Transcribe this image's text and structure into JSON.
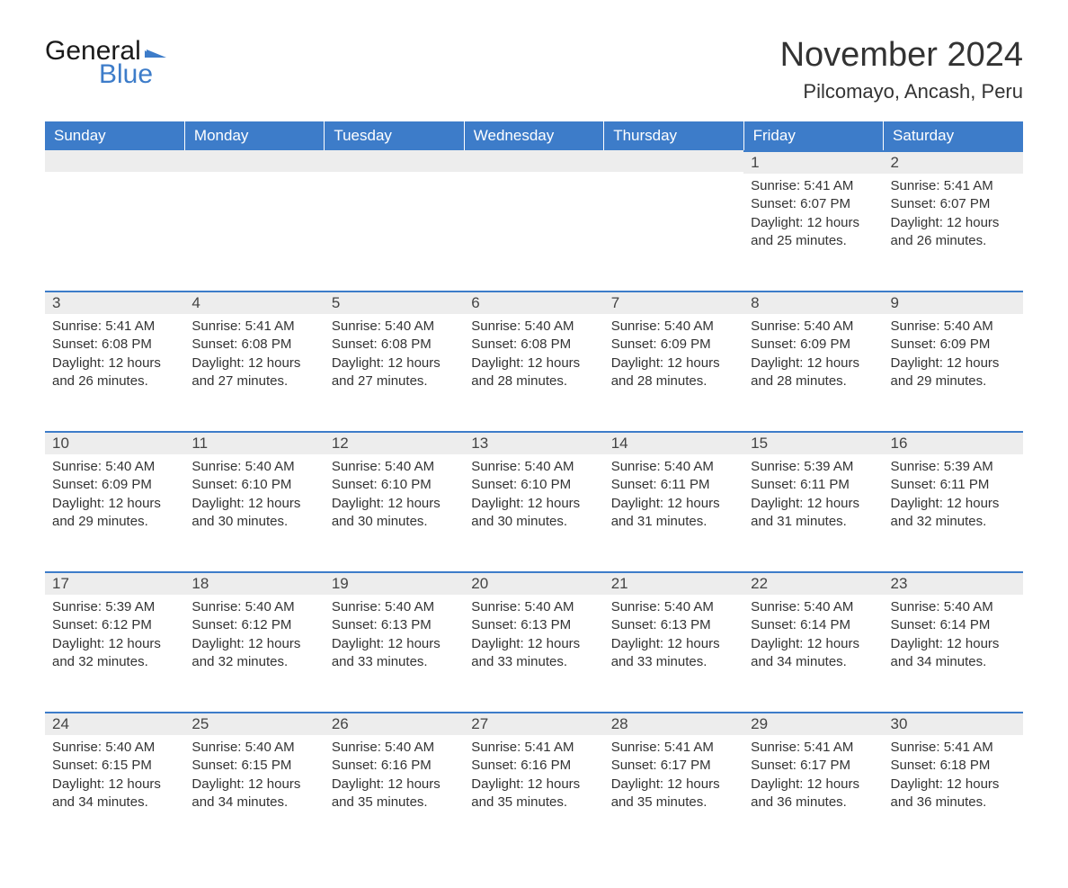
{
  "logo": {
    "text_general": "General",
    "text_blue": "Blue",
    "flag_color": "#3d7cc9"
  },
  "title": "November 2024",
  "location": "Pilcomayo, Ancash, Peru",
  "colors": {
    "header_bg": "#3d7cc9",
    "header_text": "#ffffff",
    "daynum_bg": "#ededed",
    "daynum_border": "#3d7cc9",
    "body_bg": "#ffffff",
    "text": "#333333"
  },
  "weekdays": [
    "Sunday",
    "Monday",
    "Tuesday",
    "Wednesday",
    "Thursday",
    "Friday",
    "Saturday"
  ],
  "calendar": {
    "first_weekday_index": 5,
    "days": [
      {
        "n": 1,
        "sunrise": "5:41 AM",
        "sunset": "6:07 PM",
        "daylight": "12 hours and 25 minutes."
      },
      {
        "n": 2,
        "sunrise": "5:41 AM",
        "sunset": "6:07 PM",
        "daylight": "12 hours and 26 minutes."
      },
      {
        "n": 3,
        "sunrise": "5:41 AM",
        "sunset": "6:08 PM",
        "daylight": "12 hours and 26 minutes."
      },
      {
        "n": 4,
        "sunrise": "5:41 AM",
        "sunset": "6:08 PM",
        "daylight": "12 hours and 27 minutes."
      },
      {
        "n": 5,
        "sunrise": "5:40 AM",
        "sunset": "6:08 PM",
        "daylight": "12 hours and 27 minutes."
      },
      {
        "n": 6,
        "sunrise": "5:40 AM",
        "sunset": "6:08 PM",
        "daylight": "12 hours and 28 minutes."
      },
      {
        "n": 7,
        "sunrise": "5:40 AM",
        "sunset": "6:09 PM",
        "daylight": "12 hours and 28 minutes."
      },
      {
        "n": 8,
        "sunrise": "5:40 AM",
        "sunset": "6:09 PM",
        "daylight": "12 hours and 28 minutes."
      },
      {
        "n": 9,
        "sunrise": "5:40 AM",
        "sunset": "6:09 PM",
        "daylight": "12 hours and 29 minutes."
      },
      {
        "n": 10,
        "sunrise": "5:40 AM",
        "sunset": "6:09 PM",
        "daylight": "12 hours and 29 minutes."
      },
      {
        "n": 11,
        "sunrise": "5:40 AM",
        "sunset": "6:10 PM",
        "daylight": "12 hours and 30 minutes."
      },
      {
        "n": 12,
        "sunrise": "5:40 AM",
        "sunset": "6:10 PM",
        "daylight": "12 hours and 30 minutes."
      },
      {
        "n": 13,
        "sunrise": "5:40 AM",
        "sunset": "6:10 PM",
        "daylight": "12 hours and 30 minutes."
      },
      {
        "n": 14,
        "sunrise": "5:40 AM",
        "sunset": "6:11 PM",
        "daylight": "12 hours and 31 minutes."
      },
      {
        "n": 15,
        "sunrise": "5:39 AM",
        "sunset": "6:11 PM",
        "daylight": "12 hours and 31 minutes."
      },
      {
        "n": 16,
        "sunrise": "5:39 AM",
        "sunset": "6:11 PM",
        "daylight": "12 hours and 32 minutes."
      },
      {
        "n": 17,
        "sunrise": "5:39 AM",
        "sunset": "6:12 PM",
        "daylight": "12 hours and 32 minutes."
      },
      {
        "n": 18,
        "sunrise": "5:40 AM",
        "sunset": "6:12 PM",
        "daylight": "12 hours and 32 minutes."
      },
      {
        "n": 19,
        "sunrise": "5:40 AM",
        "sunset": "6:13 PM",
        "daylight": "12 hours and 33 minutes."
      },
      {
        "n": 20,
        "sunrise": "5:40 AM",
        "sunset": "6:13 PM",
        "daylight": "12 hours and 33 minutes."
      },
      {
        "n": 21,
        "sunrise": "5:40 AM",
        "sunset": "6:13 PM",
        "daylight": "12 hours and 33 minutes."
      },
      {
        "n": 22,
        "sunrise": "5:40 AM",
        "sunset": "6:14 PM",
        "daylight": "12 hours and 34 minutes."
      },
      {
        "n": 23,
        "sunrise": "5:40 AM",
        "sunset": "6:14 PM",
        "daylight": "12 hours and 34 minutes."
      },
      {
        "n": 24,
        "sunrise": "5:40 AM",
        "sunset": "6:15 PM",
        "daylight": "12 hours and 34 minutes."
      },
      {
        "n": 25,
        "sunrise": "5:40 AM",
        "sunset": "6:15 PM",
        "daylight": "12 hours and 34 minutes."
      },
      {
        "n": 26,
        "sunrise": "5:40 AM",
        "sunset": "6:16 PM",
        "daylight": "12 hours and 35 minutes."
      },
      {
        "n": 27,
        "sunrise": "5:41 AM",
        "sunset": "6:16 PM",
        "daylight": "12 hours and 35 minutes."
      },
      {
        "n": 28,
        "sunrise": "5:41 AM",
        "sunset": "6:17 PM",
        "daylight": "12 hours and 35 minutes."
      },
      {
        "n": 29,
        "sunrise": "5:41 AM",
        "sunset": "6:17 PM",
        "daylight": "12 hours and 36 minutes."
      },
      {
        "n": 30,
        "sunrise": "5:41 AM",
        "sunset": "6:18 PM",
        "daylight": "12 hours and 36 minutes."
      }
    ]
  },
  "labels": {
    "sunrise": "Sunrise:",
    "sunset": "Sunset:",
    "daylight": "Daylight:"
  }
}
